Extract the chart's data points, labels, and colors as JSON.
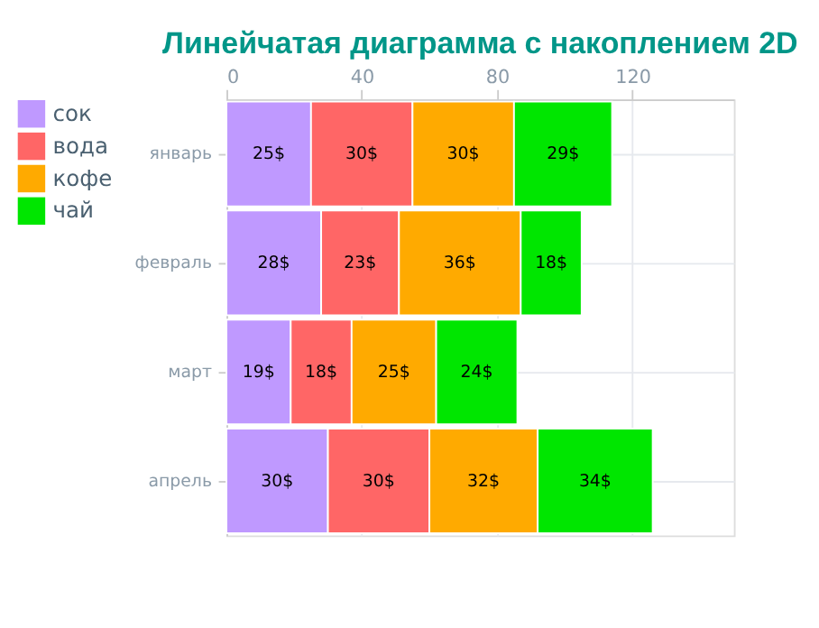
{
  "chart_data": {
    "type": "bar",
    "orientation": "horizontal",
    "stacked": true,
    "title": "Линейчатая диаграмма с накоплением 2D",
    "categories": [
      "январь",
      "февраль",
      "март",
      "апрель"
    ],
    "series": [
      {
        "name": "сок",
        "color": "#bf99ff",
        "values": [
          25,
          28,
          19,
          30
        ],
        "value_labels": [
          "25$",
          "28$",
          "19$",
          "30$"
        ]
      },
      {
        "name": "вода",
        "color": "#ff6666",
        "values": [
          30,
          23,
          18,
          30
        ],
        "value_labels": [
          "30$",
          "23$",
          "18$",
          "30$"
        ]
      },
      {
        "name": "кофе",
        "color": "#ffaa00",
        "values": [
          30,
          36,
          25,
          32
        ],
        "value_labels": [
          "30$",
          "36$",
          "25$",
          "32$"
        ]
      },
      {
        "name": "чай",
        "color": "#00e600",
        "values": [
          29,
          18,
          24,
          34
        ],
        "value_labels": [
          "29$",
          "18$",
          "24$",
          "34$"
        ]
      }
    ],
    "xlim": [
      0,
      150
    ],
    "xticks": [
      0,
      40,
      80,
      120
    ],
    "grid": true,
    "legend": "left"
  }
}
